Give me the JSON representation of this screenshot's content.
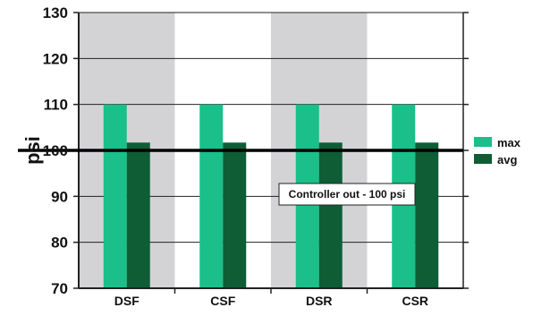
{
  "chart_data": {
    "type": "bar",
    "categories": [
      "DSF",
      "CSF",
      "DSR",
      "CSR"
    ],
    "series": [
      {
        "name": "max",
        "values": [
          110,
          110,
          110,
          110
        ],
        "color": "#1abf8a"
      },
      {
        "name": "avg",
        "values": [
          101.7,
          101.7,
          101.7,
          101.7
        ],
        "color": "#0f5d35"
      }
    ],
    "title": "",
    "xlabel": "",
    "ylabel": "psi",
    "ylim": [
      70,
      130
    ],
    "yticks": [
      70,
      80,
      90,
      100,
      110,
      120,
      130
    ],
    "reference_line": {
      "value": 100,
      "label": "Controller out - 100 psi"
    },
    "shaded_categories": [
      "DSF",
      "DSR"
    ],
    "shade_color": "#d3d3d5",
    "grid": true,
    "legend_position": "right"
  }
}
